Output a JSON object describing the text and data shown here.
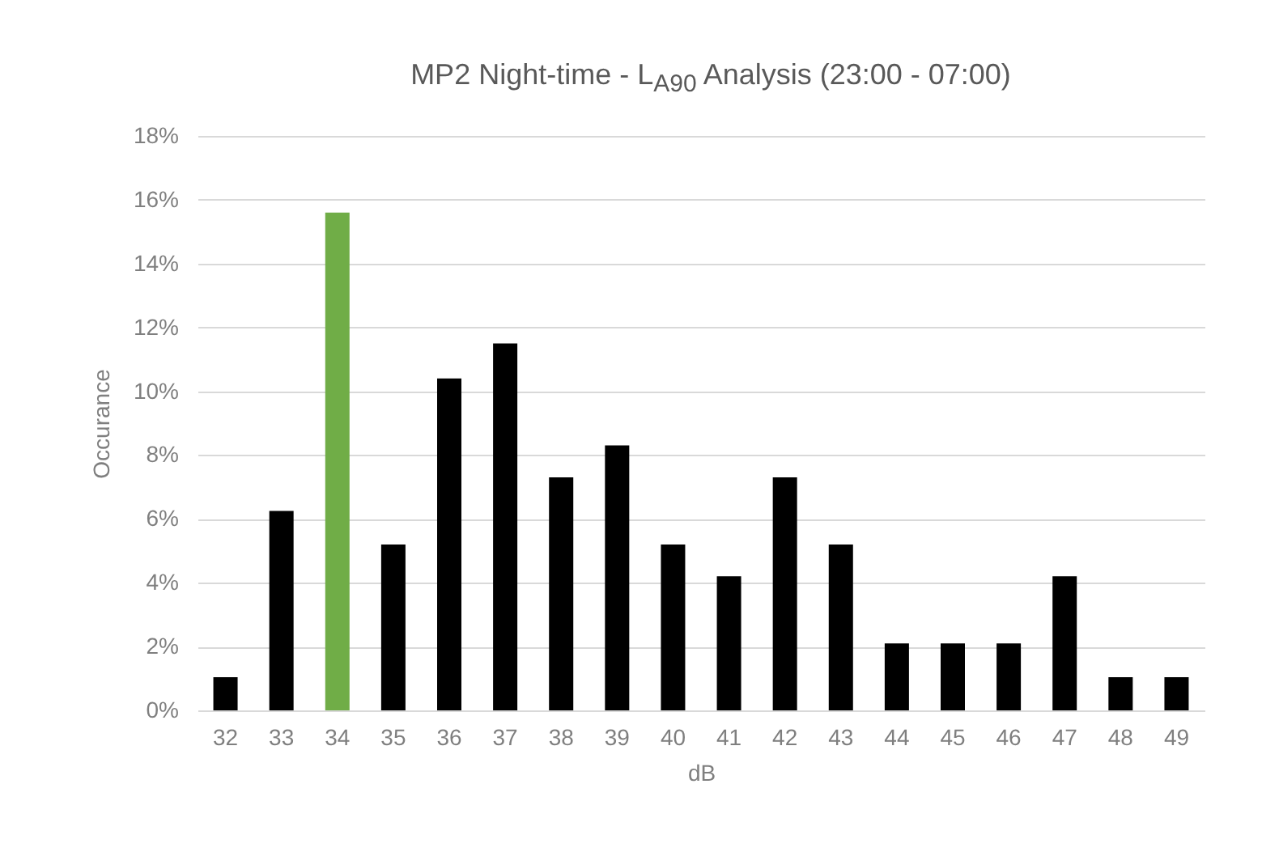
{
  "chart_data": {
    "type": "bar",
    "title": "MP2 Night-time - L$_{A90}$ Analysis (23:00 - 07:00)",
    "xlabel": "dB",
    "ylabel": "Occurance",
    "categories": [
      "32",
      "33",
      "34",
      "35",
      "36",
      "37",
      "38",
      "39",
      "40",
      "41",
      "42",
      "43",
      "44",
      "45",
      "46",
      "47",
      "48",
      "49"
    ],
    "values": [
      1.04,
      6.25,
      15.6,
      5.2,
      10.4,
      11.5,
      7.3,
      8.3,
      5.2,
      4.2,
      7.3,
      5.2,
      2.1,
      2.1,
      2.1,
      4.2,
      1.04,
      1.04
    ],
    "colors": [
      "#000000",
      "#000000",
      "#70ad47",
      "#000000",
      "#000000",
      "#000000",
      "#000000",
      "#000000",
      "#000000",
      "#000000",
      "#000000",
      "#000000",
      "#000000",
      "#000000",
      "#000000",
      "#000000",
      "#000000",
      "#000000"
    ],
    "ylim": [
      0,
      18
    ],
    "yticks": [
      {
        "value": 0,
        "label": "0%"
      },
      {
        "value": 2,
        "label": "2%"
      },
      {
        "value": 4,
        "label": "4%"
      },
      {
        "value": 6,
        "label": "6%"
      },
      {
        "value": 8,
        "label": "8%"
      },
      {
        "value": 10,
        "label": "10%"
      },
      {
        "value": 12,
        "label": "12%"
      },
      {
        "value": 14,
        "label": "14%"
      },
      {
        "value": 16,
        "label": "16%"
      },
      {
        "value": 18,
        "label": "18%"
      }
    ],
    "grid": "y"
  }
}
